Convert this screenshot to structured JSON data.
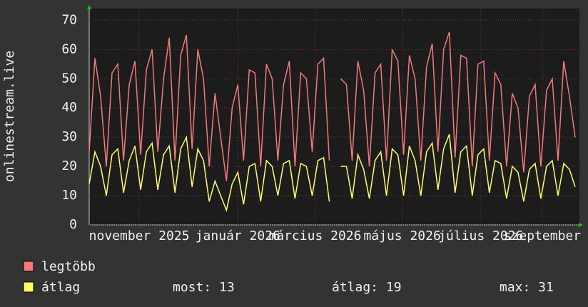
{
  "chart_data": {
    "type": "line",
    "y_label": "onlinestream.live",
    "x": [
      0,
      4,
      8,
      12,
      16,
      20,
      24,
      28,
      32,
      36,
      40,
      44,
      48,
      52,
      56,
      60,
      64,
      68,
      72,
      76,
      80,
      84,
      88,
      92,
      96,
      100,
      104,
      108,
      112,
      116,
      120,
      124,
      128,
      132,
      136,
      140,
      144,
      148,
      152,
      156,
      160,
      164,
      168,
      172,
      176,
      180,
      184,
      188,
      192,
      196,
      200,
      204,
      208,
      212,
      216,
      220,
      224,
      228,
      232,
      236,
      240,
      244,
      248,
      252,
      256,
      260,
      264,
      268,
      272,
      276,
      280,
      284,
      288,
      292,
      296,
      300,
      304,
      308,
      312,
      316,
      320,
      324,
      328,
      332,
      336,
      340
    ],
    "xlim": [
      0,
      343
    ],
    "xticks": [
      {
        "value": 35,
        "label": "november 2025"
      },
      {
        "value": 104,
        "label": "január 2026"
      },
      {
        "value": 158,
        "label": "március 2026"
      },
      {
        "value": 219,
        "label": "május 2026"
      },
      {
        "value": 274,
        "label": "július 2026"
      },
      {
        "value": 317,
        "label": "szeptember"
      }
    ],
    "ylim": [
      0,
      74
    ],
    "yticks": [
      0,
      10,
      20,
      30,
      40,
      50,
      60,
      70
    ],
    "grid": true,
    "series": [
      {
        "name": "legtöbb",
        "color": "#f47a7a",
        "values": [
          25,
          57,
          44,
          20,
          52,
          55,
          22,
          48,
          56,
          24,
          53,
          60,
          25,
          50,
          64,
          22,
          58,
          65,
          26,
          60,
          50,
          20,
          45,
          30,
          15,
          40,
          48,
          22,
          53,
          52,
          20,
          55,
          50,
          22,
          48,
          56,
          20,
          52,
          50,
          25,
          55,
          57,
          22,
          null,
          50,
          48,
          22,
          56,
          46,
          20,
          52,
          55,
          22,
          60,
          56,
          24,
          58,
          50,
          22,
          54,
          62,
          25,
          60,
          66,
          23,
          58,
          57,
          20,
          55,
          56,
          22,
          52,
          48,
          20,
          45,
          40,
          18,
          44,
          48,
          20,
          46,
          50,
          22,
          56,
          44,
          30
        ]
      },
      {
        "name": "átlag",
        "color": "#ffff66",
        "values": [
          14,
          25,
          20,
          10,
          24,
          26,
          11,
          22,
          27,
          12,
          25,
          28,
          12,
          24,
          27,
          11,
          26,
          30,
          13,
          26,
          22,
          8,
          15,
          10,
          5,
          14,
          18,
          7,
          20,
          21,
          8,
          22,
          20,
          10,
          21,
          22,
          9,
          21,
          20,
          10,
          22,
          23,
          8,
          null,
          20,
          20,
          9,
          24,
          19,
          9,
          22,
          25,
          10,
          26,
          24,
          10,
          27,
          22,
          10,
          25,
          28,
          12,
          26,
          31,
          11,
          25,
          27,
          10,
          24,
          26,
          11,
          22,
          21,
          9,
          20,
          18,
          8,
          19,
          21,
          9,
          20,
          22,
          10,
          21,
          19,
          13
        ]
      }
    ],
    "stats": [
      "most: 13",
      "átlag: 19",
      "max: 31"
    ]
  }
}
